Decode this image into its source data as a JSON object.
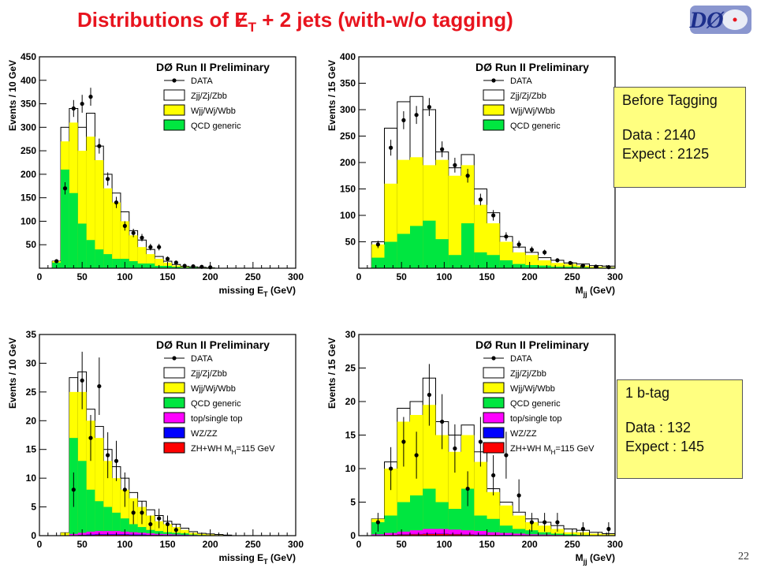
{
  "title": {
    "pre": "Distributions of ",
    "met_letter": "E",
    "met_sub": "T",
    "post": " + 2 jets (with-w/o tagging)"
  },
  "logo_text": "DØ",
  "page_number": "22",
  "colors": {
    "title": "#e8141e",
    "zjj": "#ffffff",
    "wjj": "#ffff00",
    "qcd": "#00e640",
    "top": "#ff00ff",
    "wz": "#0000ff",
    "zh": "#ff0000",
    "info_box": "#ffff80"
  },
  "info_before": {
    "title": "Before Tagging",
    "data": "Data : 2140",
    "expect": "Expect : 2125"
  },
  "info_tag": {
    "title": "1 b-tag",
    "data": "Data : 132",
    "expect": "Expect : 145"
  },
  "chart_data": [
    {
      "type": "bar",
      "title": "DØ Run II Preliminary",
      "xlabel": "missing E_T (GeV)",
      "ylabel": "Events / 10 GeV",
      "xlim": [
        0,
        300
      ],
      "ylim": [
        0,
        450
      ],
      "xticks": [
        0,
        50,
        100,
        150,
        200,
        250,
        300
      ],
      "yticks": [
        50,
        100,
        150,
        200,
        250,
        300,
        350,
        400,
        450
      ],
      "bin_width": 10,
      "bins": [
        20,
        30,
        40,
        50,
        60,
        70,
        80,
        90,
        100,
        110,
        120,
        130,
        140,
        150,
        160,
        170,
        180,
        190,
        200
      ],
      "legend": [
        "DATA",
        "Zjj/Zj/Zbb",
        "Wjj/Wj/Wbb",
        "QCD generic"
      ],
      "series": [
        {
          "name": "QCD generic",
          "values": [
            12,
            210,
            160,
            95,
            60,
            40,
            30,
            20,
            20,
            15,
            10,
            10,
            5,
            5,
            3,
            2,
            2,
            1,
            1
          ]
        },
        {
          "name": "Wjj/Wj/Wbb",
          "values": [
            15,
            270,
            310,
            250,
            280,
            230,
            170,
            140,
            100,
            70,
            45,
            30,
            20,
            12,
            6,
            3,
            2,
            1,
            1
          ]
        },
        {
          "name": "Zjj/Zj/Zbb",
          "values": [
            15,
            300,
            340,
            300,
            330,
            260,
            200,
            160,
            120,
            80,
            60,
            40,
            25,
            15,
            8,
            4,
            3,
            2,
            1
          ]
        },
        {
          "name": "DATA",
          "values": [
            15,
            170,
            340,
            350,
            365,
            260,
            190,
            140,
            90,
            75,
            65,
            45,
            45,
            20,
            12,
            5,
            4,
            3,
            2
          ]
        }
      ],
      "data_errors": [
        4,
        13,
        18,
        19,
        19,
        16,
        14,
        12,
        10,
        9,
        8,
        7,
        7,
        5,
        4,
        2,
        2,
        2,
        1
      ]
    },
    {
      "type": "bar",
      "title": "DØ Run II Preliminary",
      "xlabel": "M_jj (GeV)",
      "ylabel": "Events / 15 GeV",
      "xlim": [
        0,
        300
      ],
      "ylim": [
        0,
        400
      ],
      "xticks": [
        0,
        50,
        100,
        150,
        200,
        250,
        300
      ],
      "yticks": [
        50,
        100,
        150,
        200,
        250,
        300,
        350,
        400
      ],
      "bin_width": 15,
      "bins": [
        22.5,
        37.5,
        52.5,
        67.5,
        82.5,
        97.5,
        112.5,
        127.5,
        142.5,
        157.5,
        172.5,
        187.5,
        202.5,
        217.5,
        232.5,
        247.5,
        262.5,
        277.5,
        292.5
      ],
      "legend": [
        "DATA",
        "Zjj/Zj/Zbb",
        "Wjj/Wj/Wbb",
        "QCD generic"
      ],
      "series": [
        {
          "name": "QCD generic",
          "values": [
            20,
            50,
            65,
            80,
            90,
            55,
            25,
            85,
            30,
            25,
            15,
            8,
            6,
            5,
            3,
            3,
            2,
            1,
            1
          ]
        },
        {
          "name": "Wjj/Wj/Wbb",
          "values": [
            45,
            160,
            205,
            210,
            195,
            205,
            175,
            195,
            120,
            85,
            50,
            30,
            25,
            15,
            10,
            8,
            5,
            3,
            2
          ]
        },
        {
          "name": "Zjj/Zj/Zbb",
          "values": [
            50,
            265,
            315,
            325,
            300,
            220,
            190,
            215,
            150,
            105,
            60,
            40,
            30,
            20,
            15,
            10,
            8,
            5,
            4
          ]
        },
        {
          "name": "DATA",
          "values": [
            45,
            228,
            280,
            290,
            305,
            225,
            195,
            175,
            130,
            100,
            60,
            45,
            35,
            30,
            15,
            10,
            5,
            3,
            2
          ]
        }
      ],
      "data_errors": [
        7,
        15,
        17,
        17,
        17,
        15,
        14,
        13,
        11,
        10,
        8,
        7,
        6,
        5,
        4,
        3,
        2,
        2,
        1
      ]
    },
    {
      "type": "bar",
      "title": "DØ Run II Preliminary",
      "xlabel": "missing E_T (GeV)",
      "ylabel": "Events / 10 GeV",
      "xlim": [
        0,
        300
      ],
      "ylim": [
        0,
        35
      ],
      "xticks": [
        0,
        50,
        100,
        150,
        200,
        250,
        300
      ],
      "yticks": [
        0,
        5,
        10,
        15,
        20,
        25,
        30,
        35
      ],
      "bin_width": 10,
      "bins": [
        10,
        20,
        30,
        40,
        50,
        60,
        70,
        80,
        90,
        100,
        110,
        120,
        130,
        140,
        150,
        160,
        170,
        180,
        190,
        200,
        210,
        220,
        230,
        240,
        250,
        260,
        270,
        280,
        290
      ],
      "legend": [
        "DATA",
        "Zjj/Zj/Zbb",
        "Wjj/Wj/Wbb",
        "QCD generic",
        "top/single top",
        "WZ/ZZ",
        "ZH+WH M_H=115 GeV"
      ],
      "series": [
        {
          "name": "ZH+WH M_H=115 GeV",
          "values": [
            0,
            0,
            0,
            0,
            0.1,
            0.1,
            0.15,
            0.15,
            0.15,
            0.15,
            0.1,
            0.1,
            0.1,
            0.1,
            0.05,
            0.05,
            0.05,
            0,
            0,
            0,
            0,
            0,
            0,
            0,
            0,
            0,
            0,
            0,
            0
          ]
        },
        {
          "name": "WZ/ZZ",
          "values": [
            0,
            0,
            0,
            0,
            0.15,
            0.2,
            0.25,
            0.25,
            0.25,
            0.25,
            0.2,
            0.2,
            0.15,
            0.15,
            0.1,
            0.1,
            0.1,
            0.05,
            0,
            0,
            0,
            0,
            0,
            0,
            0,
            0,
            0,
            0,
            0
          ]
        },
        {
          "name": "top/single top",
          "values": [
            0,
            0,
            0,
            0.3,
            0.5,
            0.7,
            0.8,
            0.8,
            0.8,
            0.7,
            0.6,
            0.5,
            0.4,
            0.3,
            0.25,
            0.2,
            0.15,
            0.1,
            0.05,
            0,
            0,
            0,
            0,
            0,
            0,
            0,
            0,
            0,
            0
          ]
        },
        {
          "name": "QCD generic",
          "values": [
            0,
            0,
            0,
            17,
            13,
            8,
            6,
            5,
            4,
            3,
            2,
            1.5,
            1,
            0.8,
            0.6,
            0.5,
            0.4,
            0.2,
            0.1,
            0,
            0,
            0,
            0,
            0,
            0,
            0,
            0,
            0,
            0
          ]
        },
        {
          "name": "Wjj/Wj/Wbb",
          "values": [
            0,
            0,
            0.5,
            25,
            25,
            20,
            17,
            13,
            10,
            8,
            6.5,
            5,
            3.5,
            2.5,
            2,
            1.5,
            1,
            0.5,
            0.3,
            0.2,
            0.1,
            0,
            0,
            0,
            0,
            0,
            0,
            0,
            0
          ]
        },
        {
          "name": "Zjj/Zj/Zbb",
          "values": [
            0,
            0,
            0.5,
            27.5,
            28.5,
            22,
            19,
            15,
            12,
            10,
            7.5,
            6,
            4.5,
            3.5,
            2.5,
            2,
            1.3,
            0.7,
            0.4,
            0.3,
            0.2,
            0.1,
            0,
            0,
            0,
            0,
            0,
            0,
            0
          ]
        },
        {
          "name": "DATA",
          "values": [
            0,
            0,
            0,
            8,
            27,
            17,
            26,
            14,
            13,
            8,
            4,
            4,
            2,
            3,
            2,
            1,
            0,
            0,
            0,
            0,
            0,
            0,
            0,
            0,
            0,
            0,
            0,
            0,
            0
          ]
        }
      ],
      "data_errors": [
        0,
        0,
        0,
        3,
        5,
        4,
        5,
        4,
        3.5,
        3,
        2,
        2,
        1.5,
        1.7,
        1.5,
        1,
        0,
        0,
        0,
        0,
        0,
        0,
        0,
        0,
        0,
        0,
        0,
        0,
        0
      ]
    },
    {
      "type": "bar",
      "title": "DØ Run II Preliminary",
      "xlabel": "M_jj (GeV)",
      "ylabel": "Events / 15 GeV",
      "xlim": [
        0,
        300
      ],
      "ylim": [
        0,
        30
      ],
      "xticks": [
        0,
        50,
        100,
        150,
        200,
        250,
        300
      ],
      "yticks": [
        0,
        5,
        10,
        15,
        20,
        25,
        30
      ],
      "bin_width": 15,
      "bins": [
        22.5,
        37.5,
        52.5,
        67.5,
        82.5,
        97.5,
        112.5,
        127.5,
        142.5,
        157.5,
        172.5,
        187.5,
        202.5,
        217.5,
        232.5,
        247.5,
        262.5,
        277.5,
        292.5
      ],
      "legend": [
        "DATA",
        "Zjj/Zj/Zbb",
        "Wjj/Wj/Wbb",
        "QCD generic",
        "top/single top",
        "WZ/ZZ",
        "ZH+WH M_H=115 GeV"
      ],
      "series": [
        {
          "name": "ZH+WH M_H=115 GeV",
          "values": [
            0.05,
            0.1,
            0.15,
            0.2,
            0.25,
            0.25,
            0.2,
            0.15,
            0.1,
            0.1,
            0.05,
            0.05,
            0,
            0,
            0,
            0,
            0,
            0,
            0
          ]
        },
        {
          "name": "WZ/ZZ",
          "values": [
            0.05,
            0.1,
            0.2,
            0.25,
            0.3,
            0.3,
            0.25,
            0.2,
            0.15,
            0.1,
            0.1,
            0.05,
            0.05,
            0,
            0,
            0,
            0,
            0,
            0
          ]
        },
        {
          "name": "top/single top",
          "values": [
            0.2,
            0.4,
            0.6,
            0.8,
            1,
            1,
            0.9,
            0.8,
            0.7,
            0.5,
            0.4,
            0.3,
            0.2,
            0.15,
            0.1,
            0.05,
            0.05,
            0,
            0
          ]
        },
        {
          "name": "QCD generic",
          "values": [
            2,
            3,
            5,
            6,
            7,
            5,
            4,
            7,
            3,
            2.5,
            1.5,
            1,
            0.8,
            0.5,
            0.3,
            0.2,
            0.1,
            0.05,
            0
          ]
        },
        {
          "name": "Wjj/Wj/Wbb",
          "values": [
            2.5,
            10,
            17,
            18,
            19.5,
            15,
            12.5,
            15,
            11,
            6.5,
            4.5,
            3,
            2,
            1.5,
            1,
            0.5,
            0.5,
            0.3,
            0.2
          ]
        },
        {
          "name": "Zjj/Zj/Zbb",
          "values": [
            2.5,
            11,
            19,
            20,
            23.5,
            17,
            15,
            16.5,
            12.5,
            7,
            5,
            3.5,
            2.5,
            2,
            1.5,
            1,
            0.8,
            0.5,
            0.3
          ]
        },
        {
          "name": "DATA",
          "values": [
            2,
            10,
            14,
            12,
            21,
            17,
            13,
            7,
            14,
            9,
            12,
            6,
            2,
            2,
            2,
            0,
            1,
            0,
            1
          ]
        }
      ],
      "data_errors": [
        1.4,
        3.2,
        3.7,
        3.5,
        4.6,
        4.1,
        3.6,
        2.6,
        3.7,
        3,
        3.5,
        2.4,
        1.4,
        1.4,
        1.4,
        0,
        1,
        0,
        1
      ]
    }
  ]
}
